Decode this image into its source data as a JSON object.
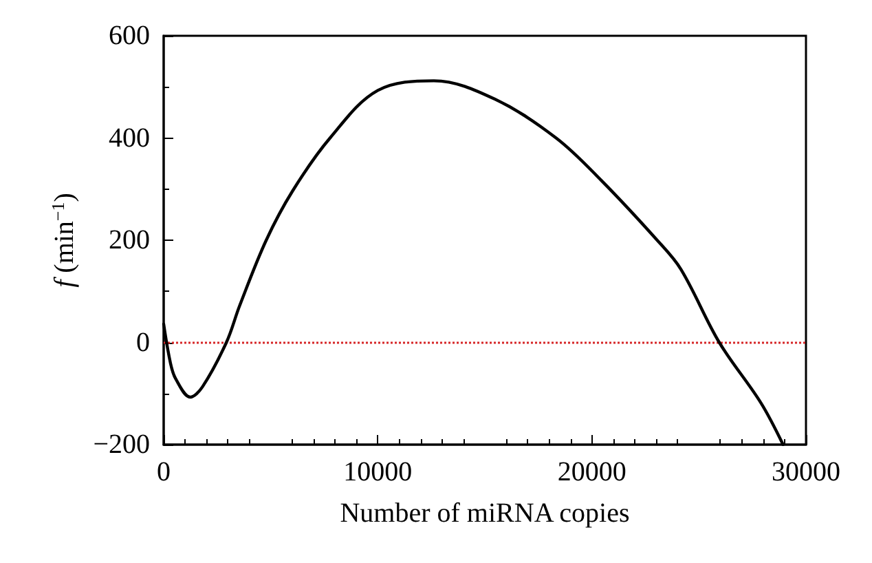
{
  "chart_data": {
    "type": "line",
    "xlabel": "Number of miRNA copies",
    "ylabel": "f (min$^{−1}$)",
    "series": [
      {
        "color": "#000000",
        "x": [
          0,
          320,
          570,
          1240,
          1810,
          2930,
          3550,
          4790,
          6030,
          7770,
          10000,
          12620,
          15470,
          18330,
          20440,
          23050,
          24160,
          25950,
          27890,
          28930
        ],
        "values": [
          36,
          -41,
          -72,
          -107,
          -87,
          0,
          72,
          200,
          297,
          400,
          493,
          512,
          476,
          400,
          317,
          200,
          143,
          0,
          -118,
          -200
        ]
      }
    ],
    "xlim": [
      0,
      30000
    ],
    "xticks": [
      0,
      10000,
      20000,
      30000
    ],
    "ylim": [
      -200,
      600
    ],
    "yticks": [
      {
        "value": -200,
        "label": "−200"
      },
      0,
      200,
      400,
      600
    ],
    "ref_lines": [
      {
        "axis": "y",
        "value": 0,
        "color": "#d62728",
        "line_style": "dotted"
      }
    ],
    "grid": false,
    "marker": "none",
    "line_style": "solid"
  }
}
